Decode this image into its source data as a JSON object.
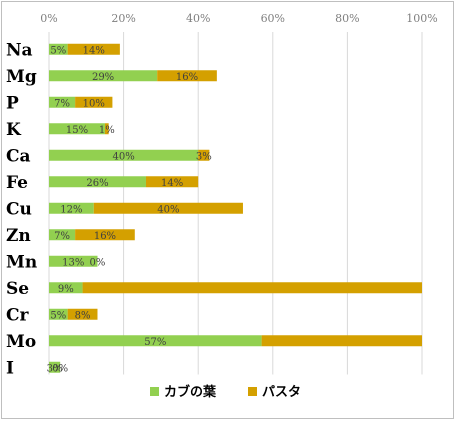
{
  "chart_data": {
    "type": "bar",
    "orientation": "horizontal",
    "stacked": true,
    "categories": [
      "Na",
      "Mg",
      "P",
      "K",
      "Ca",
      "Fe",
      "Cu",
      "Zn",
      "Mn",
      "Se",
      "Cr",
      "Mo",
      "I"
    ],
    "series": [
      {
        "name": "カブの葉",
        "color": "#92d050",
        "values": [
          5,
          29,
          7,
          15,
          40,
          26,
          12,
          7,
          13,
          9,
          5,
          57,
          3
        ],
        "labels": [
          "5%",
          "29%",
          "7%",
          "15%",
          "40%",
          "26%",
          "12%",
          "7%",
          "13%",
          "9%",
          "5%",
          "57%",
          "3%"
        ]
      },
      {
        "name": "パスタ",
        "color": "#d4a000",
        "values": [
          14,
          16,
          10,
          1,
          3,
          14,
          40,
          16,
          0,
          91,
          8,
          43,
          0
        ],
        "labels": [
          "14%",
          "16%",
          "10%",
          "1%",
          "3%",
          "14%",
          "40%",
          "16%",
          "0%",
          "",
          "8%",
          "",
          "0%"
        ]
      }
    ],
    "xlim": [
      0,
      100
    ],
    "x_ticks": [
      "0%",
      "20%",
      "40%",
      "60%",
      "80%",
      "100%"
    ],
    "x_axis_position": "top",
    "grid": true,
    "legend": "bottom"
  }
}
